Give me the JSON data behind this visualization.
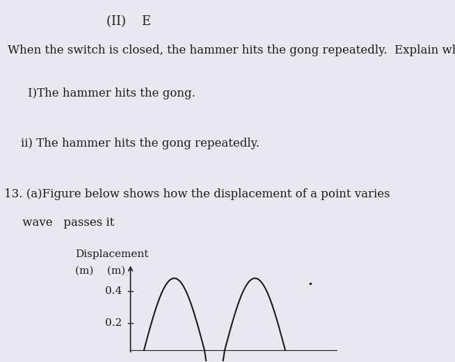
{
  "background_color": "#e8e8f0",
  "title_line1": "(II)    E",
  "para1": "When the switch is closed, the hammer hits the gong repeatedly.  Explain why:",
  "indent1": "I)The hammer hits the gong.",
  "indent2": "ii) The hammer hits the gong repeatedly.",
  "question_num": "13. (a)Figure below shows how the displacement of a point varies",
  "question_cont": "     wave   passes it",
  "ylabel_top": "Displacement",
  "ylabel_mid": "(m)    (m)",
  "ytick1": "0.4",
  "ytick2": "0.2",
  "wave_color": "#1a1a1a",
  "text_color": "#1a1a1a",
  "font_size_title": 13,
  "font_size_body": 12,
  "font_size_small": 11
}
